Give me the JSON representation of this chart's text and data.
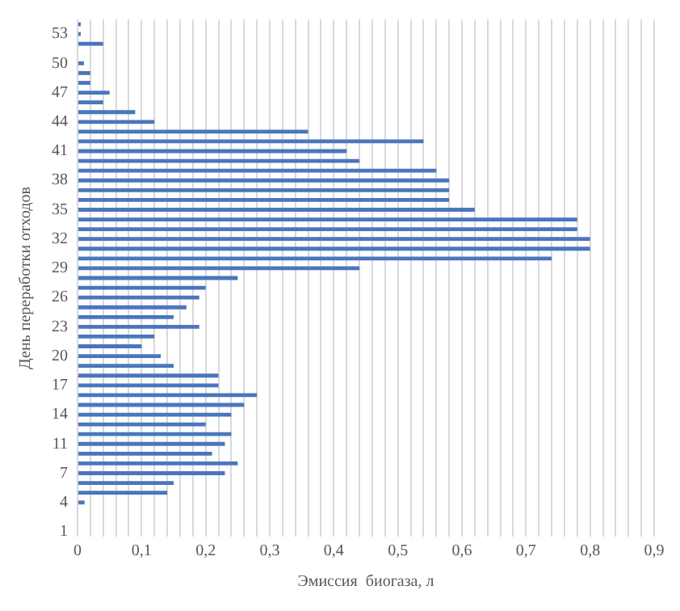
{
  "chart_data": {
    "type": "bar",
    "orientation": "horizontal",
    "xlabel": "Эмиссия  биогаза, л",
    "ylabel": "День переработки отходов",
    "categories": [
      null,
      "53",
      null,
      null,
      "50",
      null,
      null,
      "47",
      null,
      null,
      "44",
      null,
      null,
      "41",
      null,
      null,
      "38",
      null,
      null,
      "35",
      null,
      null,
      "32",
      null,
      null,
      "29",
      null,
      null,
      "26",
      null,
      null,
      "23",
      null,
      null,
      "20",
      null,
      null,
      "17",
      null,
      null,
      "14",
      null,
      null,
      "11",
      null,
      null,
      "7",
      null,
      null,
      "4",
      null,
      null,
      "1"
    ],
    "values": [
      0.005,
      0.005,
      0.04,
      0,
      0.01,
      0.02,
      0.02,
      0.05,
      0.04,
      0.09,
      0.12,
      0.36,
      0.54,
      0.42,
      0.44,
      0.56,
      0.58,
      0.58,
      0.58,
      0.62,
      0.78,
      0.78,
      0.8,
      0.8,
      0.74,
      0.44,
      0.25,
      0.2,
      0.19,
      0.17,
      0.15,
      0.19,
      0.12,
      0.1,
      0.13,
      0.15,
      0.22,
      0.22,
      0.28,
      0.26,
      0.24,
      0.2,
      0.24,
      0.23,
      0.21,
      0.25,
      0.23,
      0.15,
      0.14,
      0.011,
      0,
      0,
      0
    ],
    "color": "#4a76bd",
    "xlim": [
      0,
      0.9
    ],
    "xticks": [
      0,
      {
        "value": 0.02,
        "label": null
      },
      {
        "value": 0.04,
        "label": null
      },
      {
        "value": 0.06,
        "label": null
      },
      {
        "value": 0.08,
        "label": null
      },
      {
        "value": 0.1,
        "label": "0,1"
      },
      {
        "value": 0.12,
        "label": null
      },
      {
        "value": 0.14,
        "label": null
      },
      {
        "value": 0.16,
        "label": null
      },
      {
        "value": 0.18,
        "label": null
      },
      {
        "value": 0.2,
        "label": "0,2"
      },
      {
        "value": 0.22,
        "label": null
      },
      {
        "value": 0.24,
        "label": null
      },
      {
        "value": 0.26,
        "label": null
      },
      {
        "value": 0.28,
        "label": null
      },
      {
        "value": 0.3,
        "label": "0,3"
      },
      {
        "value": 0.32,
        "label": null
      },
      {
        "value": 0.34,
        "label": null
      },
      {
        "value": 0.36,
        "label": null
      },
      {
        "value": 0.38,
        "label": null
      },
      {
        "value": 0.4,
        "label": "0,4"
      },
      {
        "value": 0.42,
        "label": null
      },
      {
        "value": 0.44,
        "label": null
      },
      {
        "value": 0.46,
        "label": null
      },
      {
        "value": 0.48,
        "label": null
      },
      {
        "value": 0.5,
        "label": "0,5"
      },
      {
        "value": 0.52,
        "label": null
      },
      {
        "value": 0.54,
        "label": null
      },
      {
        "value": 0.56,
        "label": null
      },
      {
        "value": 0.58,
        "label": null
      },
      {
        "value": 0.6,
        "label": "0,6"
      },
      {
        "value": 0.62,
        "label": null
      },
      {
        "value": 0.64,
        "label": null
      },
      {
        "value": 0.66,
        "label": null
      },
      {
        "value": 0.68,
        "label": null
      },
      {
        "value": 0.7,
        "label": "0,7"
      },
      {
        "value": 0.72,
        "label": null
      },
      {
        "value": 0.74,
        "label": null
      },
      {
        "value": 0.76,
        "label": null
      },
      {
        "value": 0.78,
        "label": null
      },
      {
        "value": 0.8,
        "label": "0,8"
      },
      {
        "value": 0.82,
        "label": null
      },
      {
        "value": 0.84,
        "label": null
      },
      {
        "value": 0.86,
        "label": null
      },
      {
        "value": 0.88,
        "label": null
      },
      {
        "value": 0.9,
        "label": "0,9"
      }
    ],
    "grid": "x",
    "legend": false
  }
}
